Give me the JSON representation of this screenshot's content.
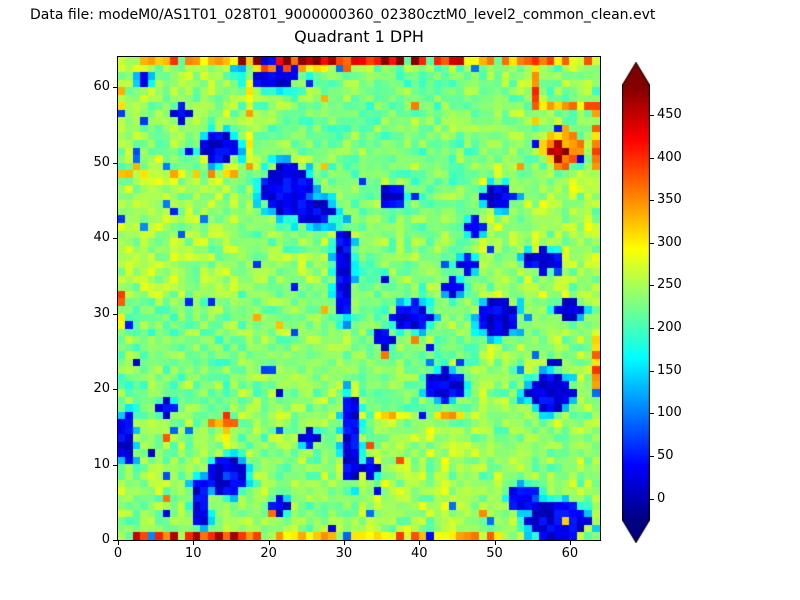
{
  "header": {
    "datafile_label": "Data file: modeM0/AS1T01_028T01_9000000360_02380cztM0_level2_common_clean.evt"
  },
  "colors": {
    "background": "#ffffff",
    "frame": "#000000",
    "text": "#000000"
  },
  "chart_data": {
    "type": "heatmap",
    "title": "Quadrant 1 DPH",
    "xlabel": "",
    "ylabel": "",
    "xlim": [
      0,
      64
    ],
    "ylim": [
      0,
      64
    ],
    "x_ticks": [
      0,
      10,
      20,
      30,
      40,
      50,
      60
    ],
    "y_ticks": [
      0,
      10,
      20,
      30,
      40,
      50,
      60
    ],
    "grid_size": [
      64,
      64
    ],
    "colormap": "jet",
    "vmin": -25,
    "vmax": 485,
    "colorbar_ticks": [
      0,
      50,
      100,
      150,
      200,
      250,
      300,
      350,
      400,
      450
    ],
    "colorbar_extend": "both",
    "module_grid": 16,
    "background_mean": 236,
    "background_noise": 27,
    "module_tint": 16,
    "seed": 42,
    "dark_speckles": 70,
    "hot_speckles": 18,
    "cold_blobs": [
      {
        "x": 20,
        "y": 61.5,
        "rx": 4.0,
        "ry": 2.2
      },
      {
        "x": 13,
        "y": 51.5,
        "rx": 2.6,
        "ry": 2.0
      },
      {
        "x": 22,
        "y": 46,
        "rx": 3.2,
        "ry": 3.5
      },
      {
        "x": 25.5,
        "y": 43,
        "rx": 2.5,
        "ry": 2.0
      },
      {
        "x": 29.5,
        "y": 35,
        "rx": 1.3,
        "ry": 5.5
      },
      {
        "x": 38.5,
        "y": 29,
        "rx": 2.6,
        "ry": 2.0
      },
      {
        "x": 50,
        "y": 29,
        "rx": 2.8,
        "ry": 2.3
      },
      {
        "x": 43,
        "y": 20,
        "rx": 2.6,
        "ry": 2.0
      },
      {
        "x": 57,
        "y": 19,
        "rx": 3.0,
        "ry": 2.2
      },
      {
        "x": 30.5,
        "y": 13,
        "rx": 1.3,
        "ry": 5.5
      },
      {
        "x": 14,
        "y": 8,
        "rx": 2.6,
        "ry": 2.4
      },
      {
        "x": 10.5,
        "y": 4.5,
        "rx": 1.4,
        "ry": 3.0
      },
      {
        "x": 0.7,
        "y": 13,
        "rx": 1.2,
        "ry": 3.5
      },
      {
        "x": 58,
        "y": 2,
        "rx": 4.2,
        "ry": 2.4
      },
      {
        "x": 53.5,
        "y": 5,
        "rx": 2.0,
        "ry": 1.8
      },
      {
        "x": 50,
        "y": 45,
        "rx": 2.2,
        "ry": 1.6
      },
      {
        "x": 36,
        "y": 45,
        "rx": 1.6,
        "ry": 1.3
      },
      {
        "x": 56,
        "y": 36.5,
        "rx": 2.2,
        "ry": 1.6
      },
      {
        "x": 59.5,
        "y": 30,
        "rx": 1.8,
        "ry": 1.4
      },
      {
        "x": 35,
        "y": 26,
        "rx": 1.2,
        "ry": 1.0
      },
      {
        "x": 39,
        "y": 30,
        "rx": 1.2,
        "ry": 1.0
      },
      {
        "x": 44,
        "y": 33,
        "rx": 1.4,
        "ry": 1.1
      },
      {
        "x": 8,
        "y": 56,
        "rx": 1.0,
        "ry": 1.0
      },
      {
        "x": 3,
        "y": 60.5,
        "rx": 0.9,
        "ry": 0.9
      },
      {
        "x": 47,
        "y": 41,
        "rx": 1.3,
        "ry": 1.1
      },
      {
        "x": 46,
        "y": 36,
        "rx": 1.3,
        "ry": 1.1
      },
      {
        "x": 25,
        "y": 13,
        "rx": 1.3,
        "ry": 1.1
      },
      {
        "x": 21,
        "y": 4,
        "rx": 1.2,
        "ry": 1.0
      },
      {
        "x": 6,
        "y": 17,
        "rx": 1.5,
        "ry": 1.2
      },
      {
        "x": 33,
        "y": 9,
        "rx": 1.2,
        "ry": 1.0
      }
    ],
    "hot_lines": [
      {
        "x0": 16,
        "x1": 45,
        "y0": 63,
        "y1": 63,
        "v": 430
      },
      {
        "x0": 3,
        "x1": 15,
        "y0": 63,
        "y1": 63,
        "v": 340
      },
      {
        "x0": 46,
        "x1": 63,
        "y0": 63,
        "y1": 63,
        "v": 330
      },
      {
        "x0": 17,
        "x1": 30,
        "y0": 62,
        "y1": 62,
        "v": 330
      },
      {
        "x0": 2,
        "x1": 18,
        "y0": 0,
        "y1": 0,
        "v": 410
      },
      {
        "x0": 19,
        "x1": 50,
        "y0": 0,
        "y1": 0,
        "v": 330
      },
      {
        "x0": 63,
        "x1": 63,
        "y0": 20,
        "y1": 26,
        "v": 345
      },
      {
        "x0": 63,
        "x1": 63,
        "y0": 49,
        "y1": 56,
        "v": 350
      },
      {
        "x0": 55,
        "x1": 55,
        "y0": 55,
        "y1": 63,
        "v": 360
      },
      {
        "x0": 56,
        "x1": 63,
        "y0": 57,
        "y1": 57,
        "v": 340
      },
      {
        "x0": 0,
        "x1": 0,
        "y0": 28,
        "y1": 32,
        "v": 350
      },
      {
        "x0": 0,
        "x1": 0,
        "y0": 55,
        "y1": 60,
        "v": 320
      },
      {
        "x0": 12,
        "x1": 15,
        "y0": 15,
        "y1": 15,
        "v": 370
      },
      {
        "x0": 14,
        "x1": 14,
        "y0": 12,
        "y1": 16,
        "v": 360
      },
      {
        "x0": 0,
        "x1": 15,
        "y0": 48,
        "y1": 48,
        "v": 295
      },
      {
        "x0": 32,
        "x1": 47,
        "y0": 16,
        "y1": 16,
        "v": 290
      },
      {
        "x0": 17,
        "x1": 17,
        "y0": 49,
        "y1": 63,
        "v": 285
      }
    ],
    "hot_spots": [
      {
        "x": 58.5,
        "y": 51.5,
        "rx": 2.6,
        "ry": 2.6,
        "v": 345
      },
      {
        "x": 58,
        "y": 51,
        "rx": 1.4,
        "ry": 1.4,
        "v": 470
      }
    ]
  }
}
